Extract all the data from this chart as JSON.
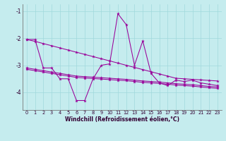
{
  "xlabel": "Windchill (Refroidissement éolien,°C)",
  "background_color": "#c5ecee",
  "line_color": "#990099",
  "xlim": [
    -0.5,
    23.5
  ],
  "ylim": [
    -4.65,
    -0.75
  ],
  "yticks": [
    -4,
    -3,
    -2,
    -1
  ],
  "xticks": [
    0,
    1,
    2,
    3,
    4,
    5,
    6,
    7,
    8,
    9,
    10,
    11,
    12,
    13,
    14,
    15,
    16,
    17,
    18,
    19,
    20,
    21,
    22,
    23
  ],
  "grid_color": "#a0d8dc",
  "series": [
    {
      "x": [
        0,
        1,
        2,
        3,
        4,
        5,
        6,
        7,
        8,
        9,
        10,
        11,
        12,
        13,
        14,
        15,
        16,
        17,
        18,
        19,
        20,
        21,
        22,
        23
      ],
      "y": [
        -2.05,
        -2.05,
        -3.1,
        -3.1,
        -3.5,
        -3.5,
        -4.3,
        -4.3,
        -3.5,
        -3.0,
        -2.95,
        -1.1,
        -1.5,
        -3.0,
        -2.1,
        -3.3,
        -3.65,
        -3.75,
        -3.55,
        -3.6,
        -3.55,
        -3.65,
        -3.7,
        -3.75
      ]
    },
    {
      "x": [
        0,
        1,
        2,
        3,
        4,
        5,
        6,
        7,
        8,
        9,
        10,
        11,
        12,
        13,
        14,
        15,
        16,
        17,
        18,
        19,
        20,
        21,
        22,
        23
      ],
      "y": [
        -2.05,
        -2.12,
        -2.2,
        -2.28,
        -2.36,
        -2.44,
        -2.52,
        -2.6,
        -2.68,
        -2.76,
        -2.84,
        -2.92,
        -3.0,
        -3.08,
        -3.16,
        -3.24,
        -3.32,
        -3.4,
        -3.48,
        -3.5,
        -3.52,
        -3.54,
        -3.56,
        -3.58
      ]
    },
    {
      "x": [
        0,
        1,
        2,
        3,
        4,
        5,
        6,
        7,
        8,
        9,
        10,
        11,
        12,
        13,
        14,
        15,
        16,
        17,
        18,
        19,
        20,
        21,
        22,
        23
      ],
      "y": [
        -3.1,
        -3.15,
        -3.2,
        -3.25,
        -3.3,
        -3.35,
        -3.4,
        -3.42,
        -3.44,
        -3.46,
        -3.48,
        -3.5,
        -3.52,
        -3.55,
        -3.58,
        -3.6,
        -3.62,
        -3.65,
        -3.68,
        -3.7,
        -3.72,
        -3.75,
        -3.78,
        -3.8
      ]
    },
    {
      "x": [
        0,
        1,
        2,
        3,
        4,
        5,
        6,
        7,
        8,
        9,
        10,
        11,
        12,
        13,
        14,
        15,
        16,
        17,
        18,
        19,
        20,
        21,
        22,
        23
      ],
      "y": [
        -3.15,
        -3.2,
        -3.25,
        -3.3,
        -3.35,
        -3.4,
        -3.45,
        -3.47,
        -3.49,
        -3.51,
        -3.53,
        -3.55,
        -3.57,
        -3.6,
        -3.63,
        -3.65,
        -3.67,
        -3.7,
        -3.73,
        -3.75,
        -3.77,
        -3.8,
        -3.83,
        -3.85
      ]
    }
  ]
}
